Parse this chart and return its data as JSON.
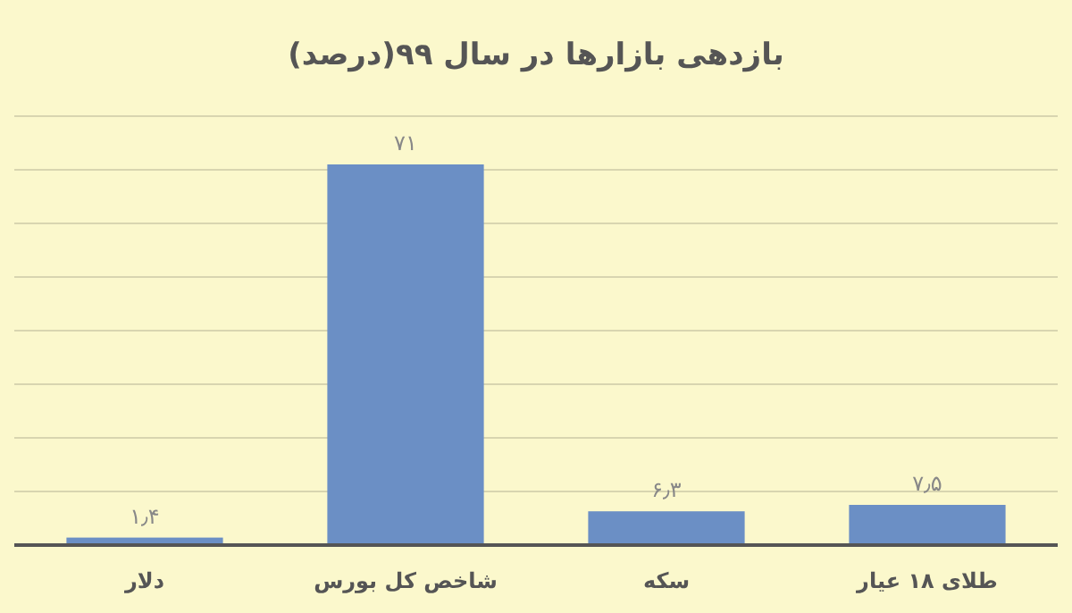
{
  "chart_data": {
    "type": "bar",
    "title": "بازدهی بازارها در سال ۹۹(درصد)",
    "categories": [
      "دلار",
      "شاخص کل بورس",
      "سکه",
      "طلای ۱۸ عیار"
    ],
    "values": [
      1.4,
      71,
      6.3,
      7.5
    ],
    "value_labels": [
      "۱٫۴",
      "۷۱",
      "۶٫۳",
      "۷٫۵"
    ],
    "color": "#6b8fc5",
    "ylim": [
      0,
      80
    ],
    "yticks": [
      {
        "value": 0,
        "label": null
      },
      {
        "value": 10,
        "label": null
      },
      {
        "value": 20,
        "label": null
      },
      {
        "value": 30,
        "label": null
      },
      {
        "value": 40,
        "label": null
      },
      {
        "value": 50,
        "label": null
      },
      {
        "value": 60,
        "label": null
      },
      {
        "value": 70,
        "label": null
      },
      {
        "value": 80,
        "label": null
      }
    ],
    "grid": "y",
    "tick_labels": "x"
  }
}
